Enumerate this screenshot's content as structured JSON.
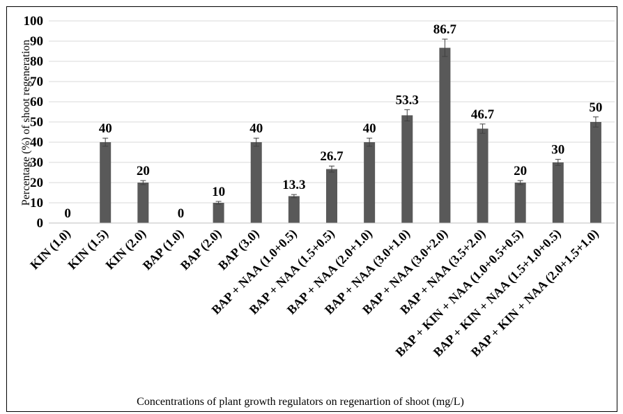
{
  "chart_data": {
    "type": "bar",
    "title": "",
    "xlabel": "Concentrations of plant growth regulators on regenartion of shoot (mg/L)",
    "ylabel": "Percentage (%) of shoot regeneration",
    "ylim": [
      0,
      100
    ],
    "yticks": [
      0,
      10,
      20,
      30,
      40,
      50,
      60,
      70,
      80,
      90,
      100
    ],
    "grid": true,
    "categories": [
      "KIN (1.0)",
      "KIN (1.5)",
      "KIN (2.0)",
      "BAP (1.0)",
      "BAP (2.0)",
      "BAP (3.0)",
      "BAP + NAA (1.0+0.5)",
      "BAP + NAA (1.5+0.5)",
      "BAP + NAA (2.0+1.0)",
      "BAP + NAA (3.0+1.0)",
      "BAP + NAA (3.0+2.0)",
      "BAP + NAA (3.5+2.0)",
      "BAP + KIN + NAA (1.0+0.5+0.5)",
      "BAP + KIN + NAA (1.5+1.0+0.5)",
      "BAP + KIN + NAA (2.0+1.5+1.0)"
    ],
    "values": [
      0,
      40,
      20,
      0,
      10,
      40,
      13.3,
      26.7,
      40,
      53.3,
      86.7,
      46.7,
      20,
      30,
      50
    ],
    "value_labels": [
      "0",
      "40",
      "20",
      "0",
      "10",
      "40",
      "13.3",
      "26.7",
      "40",
      "53.3",
      "86.7",
      "46.7",
      "20",
      "30",
      "50"
    ],
    "errors": [
      0,
      2,
      1,
      0,
      0.7,
      2,
      0.8,
      1.5,
      2,
      2.8,
      4.3,
      2.3,
      1,
      1.5,
      2.5
    ],
    "bar_color": "#595959",
    "grid_color": "#d9d9d9"
  }
}
